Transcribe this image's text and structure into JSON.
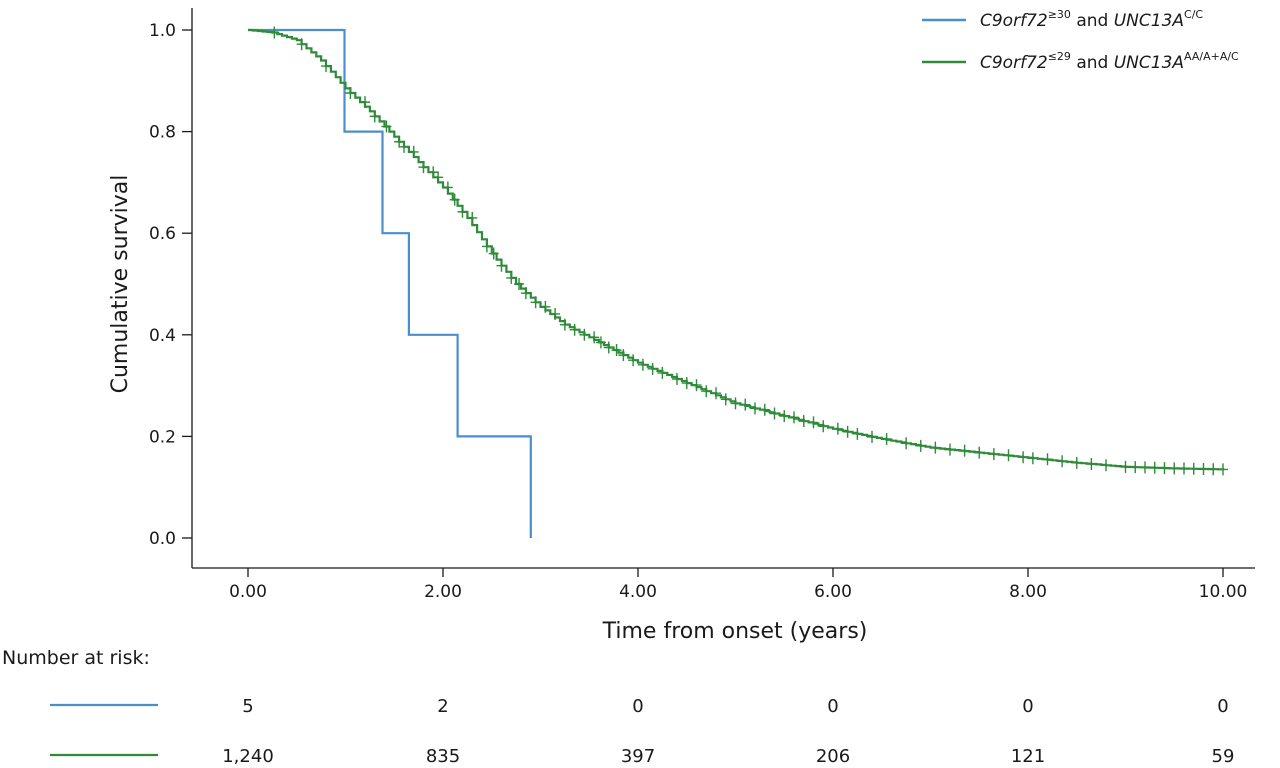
{
  "chart_data": {
    "type": "line",
    "subtype": "kaplan-meier",
    "title": "",
    "xlabel": "Time from onset (years)",
    "ylabel": "Cumulative survival",
    "xlim": [
      0,
      10
    ],
    "ylim": [
      0,
      1
    ],
    "x_ticks": [
      0,
      2,
      4,
      6,
      8,
      10
    ],
    "x_tick_labels": [
      "0.00",
      "2.00",
      "4.00",
      "6.00",
      "8.00",
      "10.00"
    ],
    "y_ticks": [
      0,
      0.2,
      0.4,
      0.6,
      0.8,
      1.0
    ],
    "y_tick_labels": [
      "0.0",
      "0.2",
      "0.4",
      "0.6",
      "0.8",
      "1.0"
    ],
    "grid": false,
    "legend_position": "top-right",
    "series": [
      {
        "legend": {
          "gene1": "C9orf72",
          "sup1": "≥30",
          "mid": " and ",
          "gene2": "UNC13A",
          "sup2": "C/C"
        },
        "color": "#4a8fc9",
        "step_x": [
          0,
          0.99,
          1.38,
          1.65,
          2.15,
          2.9
        ],
        "step_y": [
          1.0,
          0.8,
          0.6,
          0.4,
          0.2,
          0.0
        ],
        "censored": []
      },
      {
        "legend": {
          "gene1": "C9orf72",
          "sup1": "≤29",
          "mid": " and ",
          "gene2": "UNC13A",
          "sup2": "AA/A+A/C"
        },
        "color": "#2e8b3a",
        "curve_x": [
          0,
          0.25,
          0.5,
          0.75,
          1.0,
          1.25,
          1.5,
          1.75,
          2.0,
          2.25,
          2.5,
          2.75,
          3.0,
          3.25,
          3.5,
          3.75,
          4.0,
          4.5,
          5.0,
          5.5,
          6.0,
          6.5,
          7.0,
          7.5,
          8.0,
          8.5,
          9.0,
          9.5,
          10.0
        ],
        "curve_y": [
          1.0,
          0.995,
          0.98,
          0.94,
          0.885,
          0.84,
          0.79,
          0.74,
          0.69,
          0.63,
          0.56,
          0.5,
          0.455,
          0.42,
          0.395,
          0.37,
          0.345,
          0.305,
          0.265,
          0.24,
          0.215,
          0.195,
          0.178,
          0.168,
          0.158,
          0.148,
          0.14,
          0.137,
          0.135
        ],
        "censored": [
          0.27,
          0.55,
          0.8,
          1.05,
          1.2,
          1.3,
          1.42,
          1.55,
          1.6,
          1.7,
          1.8,
          1.9,
          1.95,
          2.05,
          2.12,
          2.2,
          2.3,
          2.45,
          2.52,
          2.6,
          2.7,
          2.78,
          2.85,
          2.95,
          3.05,
          3.15,
          3.25,
          3.35,
          3.45,
          3.55,
          3.62,
          3.7,
          3.78,
          3.85,
          3.95,
          4.05,
          4.15,
          4.25,
          4.4,
          4.5,
          4.6,
          4.7,
          4.8,
          4.9,
          5.0,
          5.1,
          5.2,
          5.3,
          5.4,
          5.5,
          5.6,
          5.7,
          5.8,
          5.9,
          6.05,
          6.15,
          6.25,
          6.4,
          6.55,
          6.75,
          6.9,
          7.05,
          7.2,
          7.35,
          7.5,
          7.65,
          7.8,
          7.95,
          8.05,
          8.2,
          8.35,
          8.5,
          8.65,
          8.8,
          9.0,
          9.1,
          9.2,
          9.3,
          9.4,
          9.5,
          9.6,
          9.7,
          9.8,
          9.9,
          10.0
        ]
      }
    ]
  },
  "risk_table": {
    "title": "Number at risk:",
    "rows": [
      {
        "color": "#4a8fc9",
        "values": [
          "5",
          "2",
          "0",
          "0",
          "0",
          "0"
        ]
      },
      {
        "color": "#2e8b3a",
        "values": [
          "1,240",
          "835",
          "397",
          "206",
          "121",
          "59"
        ]
      }
    ]
  }
}
